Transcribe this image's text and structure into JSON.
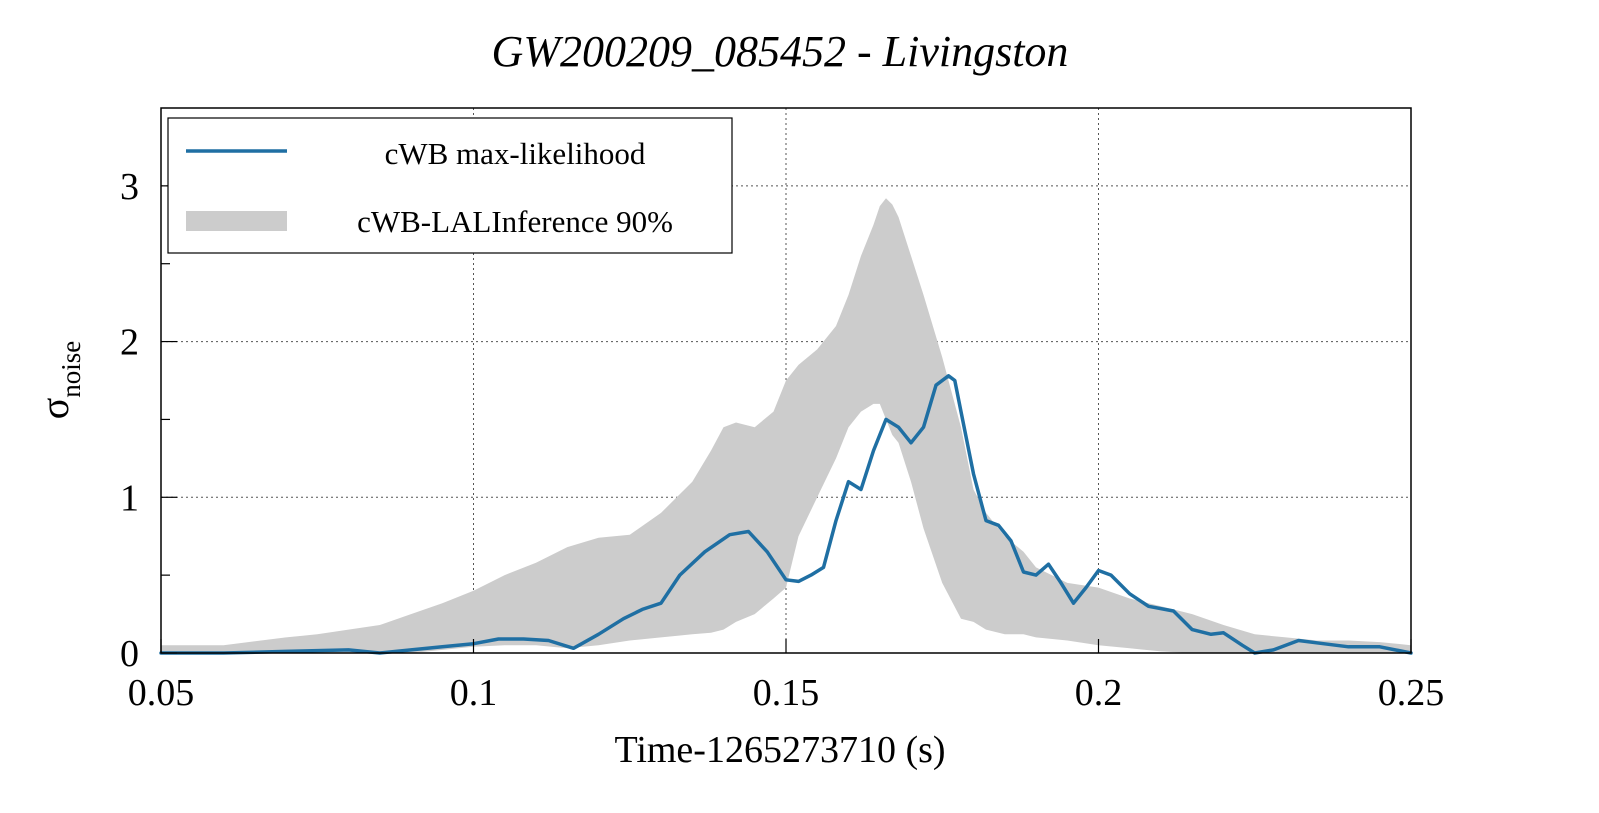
{
  "chart_data": {
    "type": "area",
    "title": "GW200209_085452 - Livingston",
    "xlabel": "Time-1265273710 (s)",
    "ylabel": {
      "base": "σ",
      "subscript": "noise"
    },
    "xlim": [
      0.05,
      0.25
    ],
    "ylim": [
      0,
      3.5
    ],
    "grid": true,
    "legend_position": "top-left",
    "x_ticks": [
      {
        "value": 0.05,
        "label": "0.05"
      },
      {
        "value": 0.1,
        "label": "0.1"
      },
      {
        "value": 0.15,
        "label": "0.15"
      },
      {
        "value": 0.2,
        "label": "0.2"
      },
      {
        "value": 0.25,
        "label": "0.25"
      }
    ],
    "y_ticks": [
      {
        "value": 0,
        "label": "0"
      },
      {
        "value": 1,
        "label": "1"
      },
      {
        "value": 2,
        "label": "2"
      },
      {
        "value": 3,
        "label": "3"
      }
    ],
    "y_minor_ticks": [
      0.5,
      1.5,
      2.5
    ],
    "series": [
      {
        "name": "cWB max-likelihood",
        "type": "line",
        "color": "#1f6fa3",
        "x": [
          0.05,
          0.06,
          0.07,
          0.08,
          0.085,
          0.09,
          0.095,
          0.1,
          0.104,
          0.108,
          0.112,
          0.116,
          0.12,
          0.124,
          0.127,
          0.13,
          0.133,
          0.137,
          0.141,
          0.144,
          0.147,
          0.15,
          0.152,
          0.154,
          0.156,
          0.158,
          0.16,
          0.162,
          0.164,
          0.166,
          0.168,
          0.17,
          0.172,
          0.174,
          0.176,
          0.177,
          0.178,
          0.18,
          0.182,
          0.184,
          0.186,
          0.188,
          0.19,
          0.192,
          0.194,
          0.196,
          0.198,
          0.2,
          0.202,
          0.205,
          0.208,
          0.212,
          0.215,
          0.218,
          0.22,
          0.223,
          0.225,
          0.228,
          0.232,
          0.236,
          0.24,
          0.245,
          0.25
        ],
        "y": [
          0.0,
          0.0,
          0.01,
          0.02,
          0.0,
          0.02,
          0.04,
          0.06,
          0.09,
          0.09,
          0.08,
          0.03,
          0.12,
          0.22,
          0.28,
          0.32,
          0.5,
          0.65,
          0.76,
          0.78,
          0.65,
          0.47,
          0.46,
          0.5,
          0.55,
          0.85,
          1.1,
          1.05,
          1.3,
          1.5,
          1.45,
          1.35,
          1.45,
          1.72,
          1.78,
          1.75,
          1.55,
          1.15,
          0.85,
          0.82,
          0.72,
          0.52,
          0.5,
          0.57,
          0.45,
          0.32,
          0.42,
          0.53,
          0.5,
          0.38,
          0.3,
          0.27,
          0.15,
          0.12,
          0.13,
          0.05,
          0.0,
          0.02,
          0.08,
          0.06,
          0.04,
          0.04,
          0.0
        ]
      },
      {
        "name": "cWB-LALInference 90%",
        "type": "band",
        "color": "#cccccc",
        "x": [
          0.05,
          0.06,
          0.07,
          0.075,
          0.08,
          0.085,
          0.09,
          0.095,
          0.1,
          0.105,
          0.11,
          0.115,
          0.12,
          0.125,
          0.13,
          0.135,
          0.138,
          0.14,
          0.142,
          0.145,
          0.148,
          0.15,
          0.152,
          0.155,
          0.158,
          0.16,
          0.162,
          0.164,
          0.165,
          0.166,
          0.167,
          0.168,
          0.17,
          0.172,
          0.175,
          0.178,
          0.18,
          0.182,
          0.185,
          0.188,
          0.19,
          0.195,
          0.2,
          0.205,
          0.21,
          0.215,
          0.22,
          0.225,
          0.23,
          0.235,
          0.24,
          0.245,
          0.25
        ],
        "lower": [
          0.0,
          0.0,
          0.0,
          0.0,
          0.0,
          0.0,
          0.0,
          0.02,
          0.04,
          0.05,
          0.05,
          0.03,
          0.05,
          0.08,
          0.1,
          0.12,
          0.13,
          0.15,
          0.2,
          0.25,
          0.35,
          0.42,
          0.75,
          1.0,
          1.25,
          1.45,
          1.55,
          1.6,
          1.6,
          1.5,
          1.4,
          1.35,
          1.1,
          0.8,
          0.45,
          0.22,
          0.2,
          0.15,
          0.12,
          0.12,
          0.1,
          0.08,
          0.05,
          0.03,
          0.01,
          0.0,
          0.0,
          0.0,
          0.0,
          0.0,
          0.0,
          0.0,
          0.0
        ],
        "upper": [
          0.05,
          0.05,
          0.1,
          0.12,
          0.15,
          0.18,
          0.25,
          0.32,
          0.4,
          0.5,
          0.58,
          0.68,
          0.74,
          0.76,
          0.9,
          1.1,
          1.3,
          1.45,
          1.48,
          1.45,
          1.55,
          1.75,
          1.85,
          1.95,
          2.1,
          2.3,
          2.55,
          2.75,
          2.87,
          2.92,
          2.88,
          2.8,
          2.55,
          2.3,
          1.9,
          1.45,
          1.05,
          0.9,
          0.75,
          0.65,
          0.55,
          0.45,
          0.42,
          0.35,
          0.3,
          0.25,
          0.18,
          0.12,
          0.1,
          0.08,
          0.08,
          0.07,
          0.05
        ]
      }
    ]
  }
}
